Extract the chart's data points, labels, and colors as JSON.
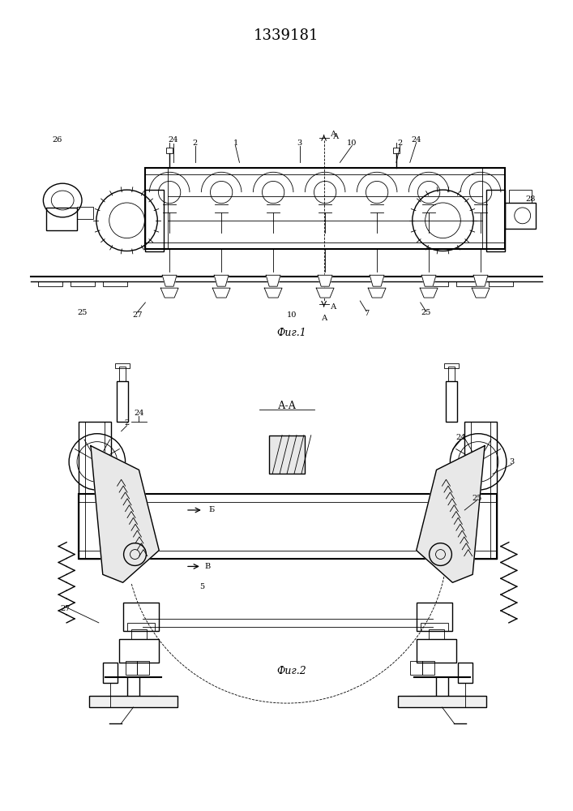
{
  "title": "1339181",
  "fig1_label": "Фиг.1",
  "fig2_label": "Фиг.2",
  "section_label": "А-А",
  "bg": "#ffffff",
  "lc": "#000000"
}
